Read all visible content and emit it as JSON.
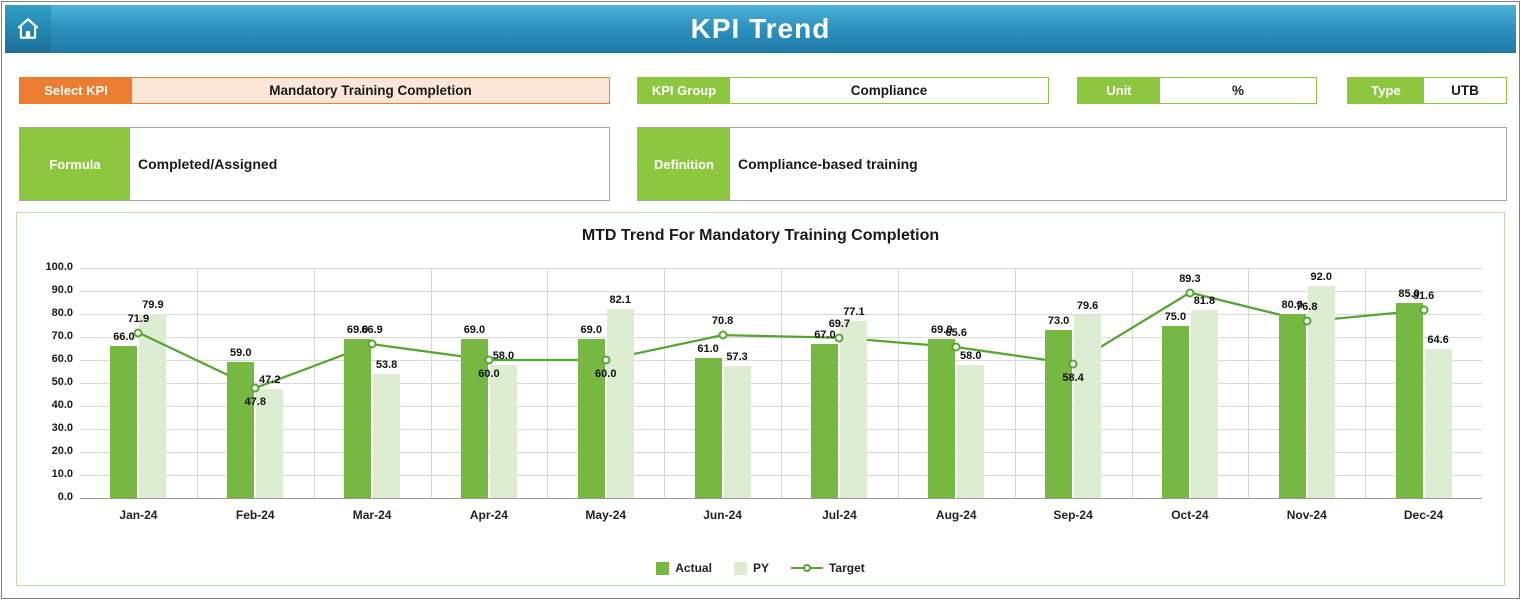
{
  "header": {
    "title": "KPI Trend",
    "home_icon": "house-icon"
  },
  "controls": {
    "select_kpi": {
      "label": "Select KPI",
      "value": "Mandatory Training Completion"
    },
    "kpi_group": {
      "label": "KPI Group",
      "value": "Compliance"
    },
    "unit": {
      "label": "Unit",
      "value": "%"
    },
    "type": {
      "label": "Type",
      "value": "UTB"
    },
    "formula": {
      "label": "Formula",
      "value": "Completed/Assigned"
    },
    "definition": {
      "label": "Definition",
      "value": "Compliance-based training"
    }
  },
  "colors": {
    "accent_orange": "#ED7D31",
    "accent_green": "#8dc63f",
    "actual_bar": "#76b841",
    "py_bar": "#dcedd2",
    "target_line": "#55a630",
    "header_blue": "#2f93bf"
  },
  "chart_data": {
    "type": "bar",
    "title": "MTD Trend For Mandatory Training Completion",
    "categories": [
      "Jan-24",
      "Feb-24",
      "Mar-24",
      "Apr-24",
      "May-24",
      "Jun-24",
      "Jul-24",
      "Aug-24",
      "Sep-24",
      "Oct-24",
      "Nov-24",
      "Dec-24"
    ],
    "series": [
      {
        "name": "Actual",
        "kind": "bar",
        "color": "#76b841",
        "values": [
          66.0,
          59.0,
          69.0,
          69.0,
          69.0,
          61.0,
          67.0,
          69.0,
          73.0,
          75.0,
          80.0,
          85.0
        ]
      },
      {
        "name": "PY",
        "kind": "bar",
        "color": "#dcedd2",
        "values": [
          79.9,
          47.2,
          53.8,
          58.0,
          82.1,
          57.3,
          77.1,
          58.0,
          79.6,
          81.8,
          92.0,
          64.6
        ]
      },
      {
        "name": "Target",
        "kind": "line",
        "color": "#55a630",
        "values": [
          71.9,
          47.8,
          66.9,
          60.0,
          60.0,
          70.8,
          69.7,
          65.6,
          58.4,
          89.3,
          76.8,
          81.6
        ],
        "label_pos": [
          "above",
          "below",
          "above",
          "below",
          "below",
          "above",
          "above",
          "above",
          "below",
          "above",
          "above",
          "above"
        ]
      }
    ],
    "ylim": [
      0,
      100
    ],
    "ytick_step": 10,
    "yticks": [
      "0.0",
      "10.0",
      "20.0",
      "30.0",
      "40.0",
      "50.0",
      "60.0",
      "70.0",
      "80.0",
      "90.0",
      "100.0"
    ],
    "grid": true,
    "legend_position": "bottom"
  }
}
